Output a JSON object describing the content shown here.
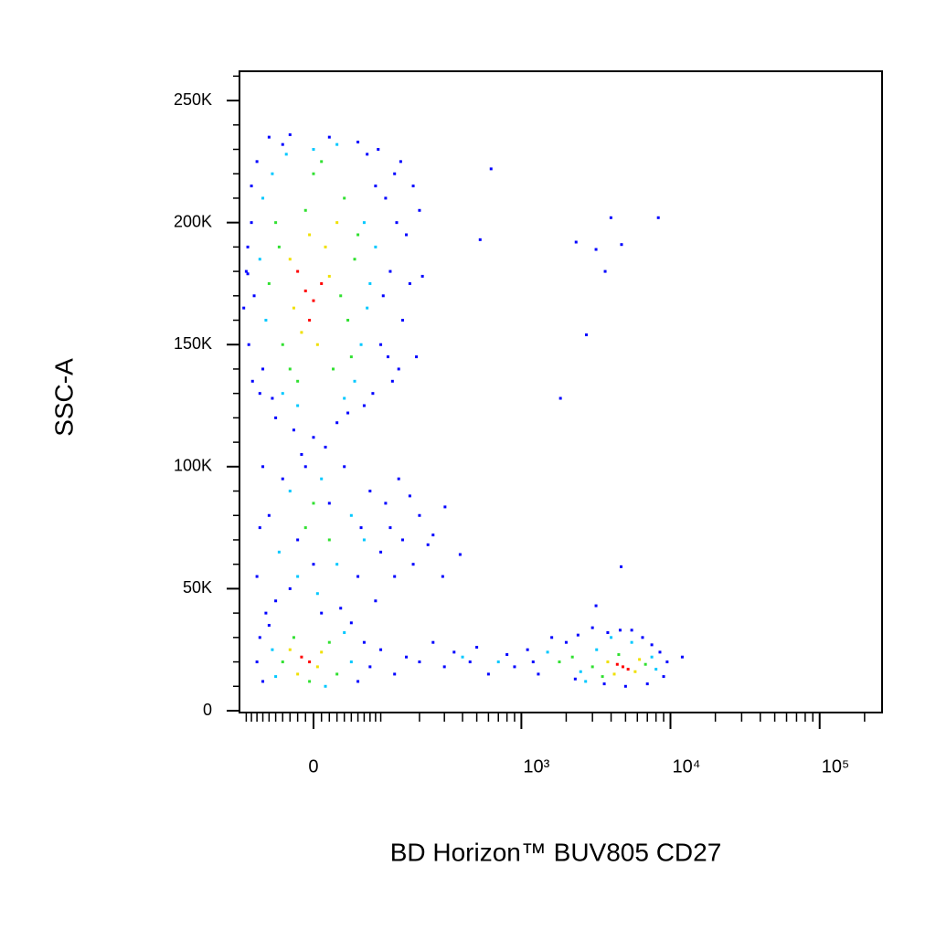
{
  "chart_data": {
    "type": "scatter",
    "x_label": "BD Horizon™ BUV805 CD27",
    "y_label": "SSC-A",
    "x_scale": "biexponential",
    "xlim": [
      -114,
      262000
    ],
    "ylim": [
      0,
      262000
    ],
    "xticks": [
      0,
      {
        "value": 1000,
        "label": "10³"
      },
      {
        "value": 10000,
        "label": "10⁴"
      },
      {
        "value": 100000,
        "label": "10⁵"
      }
    ],
    "x_minor_ticks": [
      -100,
      -90,
      -80,
      -70,
      -60,
      -50,
      -40,
      -30,
      -20,
      -10,
      10,
      20,
      30,
      40,
      50,
      60,
      70,
      80,
      90,
      100,
      200,
      300,
      400,
      500,
      600,
      700,
      800,
      900,
      2000,
      3000,
      4000,
      5000,
      6000,
      7000,
      8000,
      9000,
      20000,
      30000,
      40000,
      50000,
      60000,
      70000,
      80000,
      90000,
      200000
    ],
    "yticks": [
      0,
      {
        "value": 50000,
        "label": "50K"
      },
      {
        "value": 100000,
        "label": "100K"
      },
      {
        "value": 150000,
        "label": "150K"
      },
      {
        "value": 200000,
        "label": "200K"
      },
      {
        "value": 250000,
        "label": "250K"
      }
    ],
    "y_minor_ticks": [
      10000,
      20000,
      30000,
      40000,
      60000,
      70000,
      80000,
      90000,
      110000,
      120000,
      130000,
      140000,
      160000,
      170000,
      180000,
      190000,
      210000,
      220000,
      230000,
      240000,
      260000
    ],
    "series": [
      {
        "color": "#0000ff",
        "x": [
          -90,
          -85,
          -95,
          110,
          120,
          130,
          150,
          100,
          -80,
          95,
          -60,
          60,
          -30,
          20,
          -88,
          85,
          -50,
          30,
          0,
          -15,
          140,
          160,
          180,
          200,
          -100,
          -97,
          105,
          115,
          -70,
          70,
          125,
          -55,
          170,
          210,
          190,
          -90,
          90,
          135,
          -75,
          45,
          -25,
          15,
          -105,
          145,
          -40,
          75,
          -70,
          -60,
          -80,
          -50,
          -40,
          -20,
          0,
          20,
          40,
          60,
          80,
          100,
          120,
          150,
          180,
          200,
          230,
          -75,
          -65,
          10,
          -10,
          90,
          110,
          130,
          140,
          250,
          170,
          -30,
          35,
          65,
          -80,
          -75,
          -70,
          60,
          70,
          80,
          -60,
          50,
          100,
          130,
          160,
          200,
          250,
          300,
          350,
          450,
          500,
          600,
          800,
          900,
          1100,
          1300,
          1600,
          2000,
          2400,
          3000,
          3800,
          4600,
          5500,
          6500,
          7500,
          8500,
          9500,
          9000,
          7000,
          5000,
          3600,
          2300,
          1200,
          12000,
          625,
          3990,
          8290,
          527,
          2330,
          3170,
          4700,
          3650,
          2730,
          1830,
          303,
          385,
          292,
          4670,
          3170,
          -97
        ],
        "y": [
          200000,
          170000,
          150000,
          210000,
          180000,
          220000,
          160000,
          150000,
          225000,
          230000,
          235000,
          233000,
          236000,
          235000,
          135000,
          130000,
          120000,
          118000,
          112000,
          105000,
          140000,
          195000,
          215000,
          205000,
          180000,
          190000,
          170000,
          145000,
          140000,
          125000,
          135000,
          128000,
          175000,
          178000,
          145000,
          215000,
          215000,
          200000,
          130000,
          122000,
          115000,
          108000,
          165000,
          225000,
          232000,
          228000,
          100000,
          80000,
          55000,
          45000,
          95000,
          70000,
          60000,
          85000,
          100000,
          55000,
          90000,
          65000,
          75000,
          70000,
          60000,
          80000,
          68000,
          75000,
          40000,
          40000,
          100000,
          45000,
          85000,
          55000,
          95000,
          72000,
          88000,
          50000,
          42000,
          75000,
          20000,
          30000,
          12000,
          12000,
          28000,
          18000,
          35000,
          36000,
          25000,
          15000,
          22000,
          20000,
          28000,
          18000,
          24000,
          20000,
          26000,
          15000,
          23000,
          18000,
          25000,
          15000,
          30000,
          28000,
          31000,
          34000,
          32000,
          33000,
          33000,
          30000,
          27000,
          24000,
          20000,
          14000,
          11000,
          10000,
          11000,
          13000,
          20000,
          22000,
          222000,
          202000,
          202000,
          193000,
          192000,
          189000,
          191000,
          180000,
          154000,
          128000,
          83500,
          64000,
          55000,
          59000,
          43000,
          179000
        ]
      },
      {
        "color": "#00c8ff",
        "x": [
          -70,
          70,
          -65,
          80,
          -55,
          65,
          -40,
          40,
          -75,
          90,
          0,
          30,
          -35,
          75,
          -20,
          55,
          -30,
          30,
          -20,
          50,
          10,
          -45,
          70,
          5,
          -55,
          50,
          -50,
          40,
          15,
          400,
          700,
          1500,
          2500,
          7500,
          5500,
          3200,
          8000,
          2700,
          4000
        ],
        "y": [
          210000,
          200000,
          160000,
          175000,
          220000,
          150000,
          130000,
          128000,
          185000,
          190000,
          230000,
          232000,
          228000,
          165000,
          125000,
          135000,
          90000,
          60000,
          55000,
          80000,
          95000,
          65000,
          70000,
          48000,
          25000,
          20000,
          14000,
          32000,
          10000,
          22000,
          20000,
          24000,
          16000,
          22000,
          28000,
          25000,
          17000,
          12000,
          30000
        ]
      },
      {
        "color": "#30e030",
        "x": [
          -50,
          40,
          -40,
          45,
          -60,
          55,
          0,
          -30,
          25,
          -10,
          35,
          -45,
          60,
          -20,
          10,
          50,
          -10,
          20,
          0,
          -40,
          30,
          -25,
          20,
          -5,
          2200,
          3000,
          6800,
          4500,
          3500,
          1800
        ],
        "y": [
          200000,
          210000,
          150000,
          160000,
          175000,
          185000,
          220000,
          140000,
          140000,
          205000,
          170000,
          190000,
          195000,
          135000,
          225000,
          145000,
          75000,
          70000,
          85000,
          20000,
          15000,
          30000,
          28000,
          12000,
          22000,
          18000,
          19000,
          23000,
          14000,
          20000
        ]
      },
      {
        "color": "#f0e000",
        "x": [
          -30,
          20,
          -15,
          15,
          -25,
          5,
          30,
          -5,
          -30,
          5,
          -20,
          10,
          3800,
          5800,
          4200,
          6200
        ],
        "y": [
          185000,
          178000,
          155000,
          190000,
          165000,
          150000,
          200000,
          195000,
          25000,
          18000,
          15000,
          24000,
          20000,
          16000,
          15000,
          21000
        ]
      },
      {
        "color": "#ff0000",
        "x": [
          -10,
          0,
          -20,
          10,
          -5,
          -15,
          -5,
          4800,
          5200,
          4400
        ],
        "y": [
          172000,
          168000,
          180000,
          175000,
          160000,
          22000,
          20000,
          18000,
          17000,
          19000
        ]
      }
    ]
  }
}
